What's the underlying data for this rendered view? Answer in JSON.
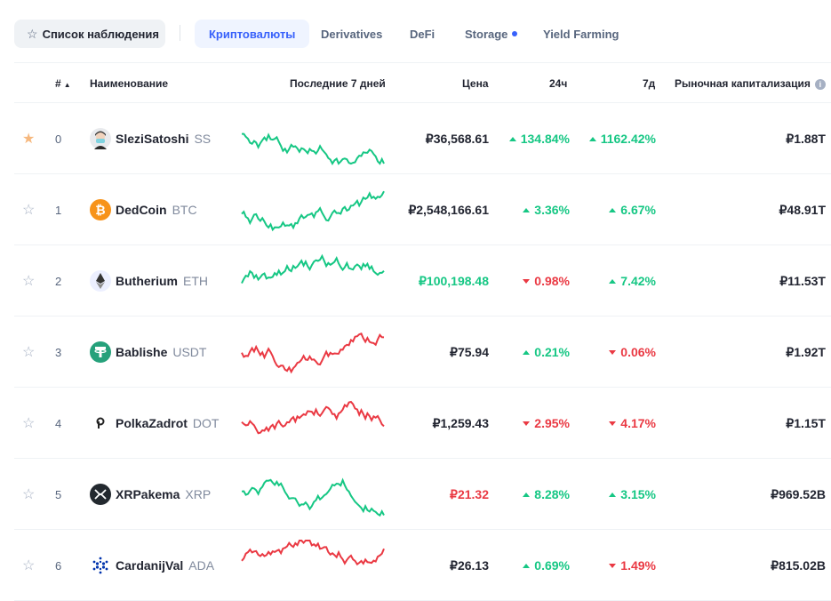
{
  "nav": {
    "watchlist_label": "Список наблюдения",
    "tabs": [
      {
        "label": "Криптовалюты",
        "active": true
      },
      {
        "label": "Derivatives",
        "active": false
      },
      {
        "label": "DeFi",
        "active": false
      },
      {
        "label": "Storage",
        "active": false,
        "dot": true
      },
      {
        "label": "Yield Farming",
        "active": false
      }
    ]
  },
  "table": {
    "headers": {
      "rank": "#",
      "name": "Наименование",
      "chart": "Последние 7 дней",
      "price": "Цена",
      "h24": "24ч",
      "d7": "7д",
      "mcap": "Рыночная капитализация"
    },
    "rows": [
      {
        "starred": true,
        "rank": "0",
        "name": "SleziSatoshi",
        "symbol": "SS",
        "logo_icon": "avatar-icon",
        "price": "₽36,568.61",
        "price_color": "#222531",
        "h24": "134.84%",
        "h24_dir": "up",
        "d7": "1162.42%",
        "d7_dir": "up",
        "mcap": "₽1.88T",
        "spark_color": "#16c784"
      },
      {
        "starred": false,
        "rank": "1",
        "name": "DedCoin",
        "symbol": "BTC",
        "logo_icon": "bitcoin-icon",
        "price": "₽2,548,166.61",
        "price_color": "#222531",
        "h24": "3.36%",
        "h24_dir": "up",
        "d7": "6.67%",
        "d7_dir": "up",
        "mcap": "₽48.91T",
        "spark_color": "#16c784"
      },
      {
        "starred": false,
        "rank": "2",
        "name": "Butherium",
        "symbol": "ETH",
        "logo_icon": "ethereum-icon",
        "price": "₽100,198.48",
        "price_color": "#16c784",
        "h24": "0.98%",
        "h24_dir": "down",
        "d7": "7.42%",
        "d7_dir": "up",
        "mcap": "₽11.53T",
        "spark_color": "#16c784"
      },
      {
        "starred": false,
        "rank": "3",
        "name": "Bablishe",
        "symbol": "USDT",
        "logo_icon": "tether-icon",
        "price": "₽75.94",
        "price_color": "#222531",
        "h24": "0.21%",
        "h24_dir": "up",
        "d7": "0.06%",
        "d7_dir": "down",
        "mcap": "₽1.92T",
        "spark_color": "#ea3943"
      },
      {
        "starred": false,
        "rank": "4",
        "name": "PolkaZadrot",
        "symbol": "DOT",
        "logo_icon": "polkadot-icon",
        "price": "₽1,259.43",
        "price_color": "#222531",
        "h24": "2.95%",
        "h24_dir": "down",
        "d7": "4.17%",
        "d7_dir": "down",
        "mcap": "₽1.15T",
        "spark_color": "#ea3943"
      },
      {
        "starred": false,
        "rank": "5",
        "name": "XRPakema",
        "symbol": "XRP",
        "logo_icon": "xrp-icon",
        "price": "₽21.32",
        "price_color": "#ea3943",
        "h24": "8.28%",
        "h24_dir": "up",
        "d7": "3.15%",
        "d7_dir": "up",
        "mcap": "₽969.52B",
        "spark_color": "#16c784"
      },
      {
        "starred": false,
        "rank": "6",
        "name": "CardanijVal",
        "symbol": "ADA",
        "logo_icon": "cardano-icon",
        "price": "₽26.13",
        "price_color": "#222531",
        "h24": "0.69%",
        "h24_dir": "up",
        "d7": "1.49%",
        "d7_dir": "down",
        "mcap": "₽815.02B",
        "spark_color": "#ea3943"
      }
    ]
  },
  "colors": {
    "accent": "#3861fb",
    "positive": "#16c784",
    "negative": "#ea3943",
    "favorite": "#f6b87e"
  }
}
